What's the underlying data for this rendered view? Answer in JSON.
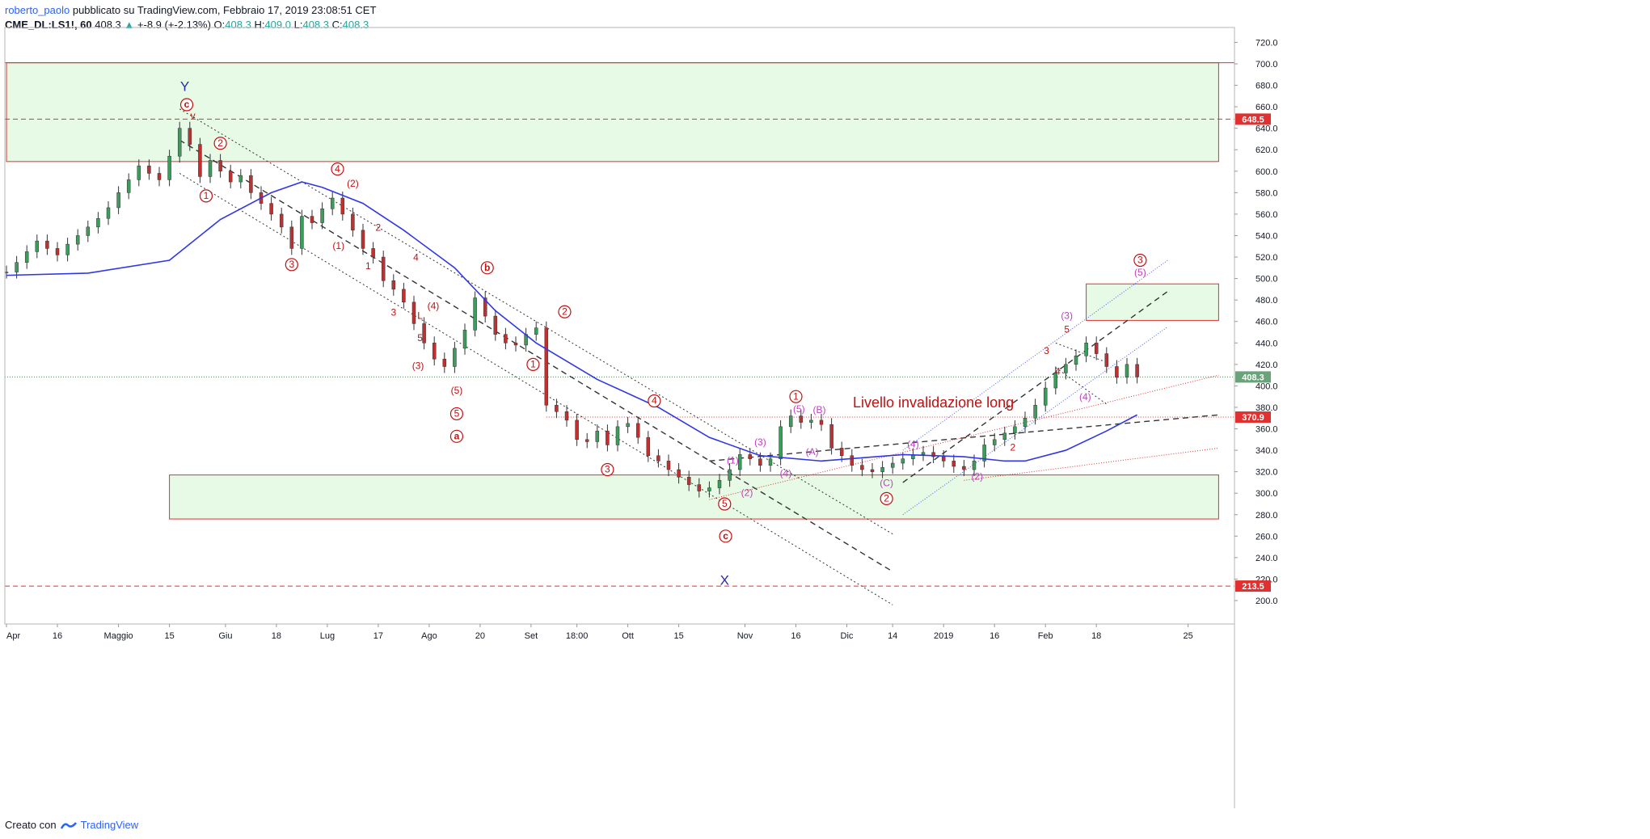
{
  "header": {
    "user": "roberto_paolo",
    "published": " pubblicato su TradingView.com, Febbraio 17, 2019 23:08:51 CET",
    "symbol": "CME_DL:LS1!, 60",
    "last": " 408.3 ",
    "change_arrow": "▲",
    "change": " +-8.9 (+-2.13%)",
    "o_label": " O:",
    "o_val": "408.3",
    "h_label": " H:",
    "h_val": "409.0",
    "l_label": " L:",
    "l_val": "408.3",
    "c_label": " C:",
    "c_val": "408.3"
  },
  "footer": {
    "created_with": "Creato con",
    "brand": "TradingView"
  },
  "colors": {
    "zone_fill": "#e6fae6",
    "zone_line": "#e03030",
    "ma": "#2f37e6",
    "channel": "#333333",
    "blue_dotted": "#4a5cf0",
    "wave_red": "#c01010",
    "wave_purple": "#c040c0",
    "last_price_bg": "#6aa27a",
    "marker_bg": "#e03030"
  },
  "chart_data": {
    "type": "line",
    "instrument": "CME_DL:LS1!",
    "timeframe": "60",
    "ylim": [
      192,
      728
    ],
    "y_ticks": [
      200,
      220,
      240,
      260,
      280,
      300,
      320,
      340,
      360,
      380,
      400,
      420,
      440,
      460,
      480,
      500,
      520,
      540,
      560,
      580,
      600,
      620,
      640,
      660,
      680,
      700,
      720
    ],
    "x_ticks": [
      {
        "i": 0,
        "label": "Apr"
      },
      {
        "i": 5,
        "label": "16"
      },
      {
        "i": 11,
        "label": "Maggio"
      },
      {
        "i": 16,
        "label": "15"
      },
      {
        "i": 21.5,
        "label": "Giu"
      },
      {
        "i": 26.5,
        "label": "18"
      },
      {
        "i": 31.5,
        "label": "Lug"
      },
      {
        "i": 36.5,
        "label": "17"
      },
      {
        "i": 41.5,
        "label": "Ago"
      },
      {
        "i": 46.5,
        "label": "20"
      },
      {
        "i": 51.5,
        "label": "Set"
      },
      {
        "i": 56,
        "label": "18:00"
      },
      {
        "i": 61,
        "label": "Ott"
      },
      {
        "i": 66,
        "label": "15"
      },
      {
        "i": 72.5,
        "label": "Nov"
      },
      {
        "i": 77.5,
        "label": "16"
      },
      {
        "i": 82.5,
        "label": "Dic"
      },
      {
        "i": 87,
        "label": "14"
      },
      {
        "i": 92,
        "label": "2019"
      },
      {
        "i": 97,
        "label": "16"
      },
      {
        "i": 102,
        "label": "Feb"
      },
      {
        "i": 107,
        "label": "18"
      },
      {
        "i": 116,
        "label": "25"
      }
    ],
    "price_markers": [
      {
        "value": 648.5,
        "label": "648.5"
      },
      {
        "value": 408.3,
        "label": "408.3",
        "last": true
      },
      {
        "value": 370.9,
        "label": "370.9"
      },
      {
        "value": 213.5,
        "label": "213.5"
      }
    ],
    "closes": [
      506,
      515,
      525,
      535,
      528,
      522,
      532,
      540,
      548,
      556,
      566,
      580,
      592,
      605,
      598,
      592,
      614,
      640,
      625,
      595,
      610,
      600,
      590,
      596,
      580,
      570,
      560,
      548,
      528,
      558,
      552,
      565,
      575,
      560,
      545,
      528,
      520,
      498,
      490,
      478,
      458,
      440,
      425,
      418,
      435,
      452,
      482,
      465,
      448,
      440,
      438,
      448,
      454,
      382,
      376,
      368,
      350,
      348,
      358,
      345,
      362,
      365,
      352,
      335,
      330,
      322,
      315,
      308,
      302,
      305,
      312,
      322,
      336,
      332,
      326,
      332,
      362,
      372,
      366,
      368,
      364,
      342,
      335,
      326,
      322,
      320,
      324,
      328,
      332,
      336,
      338,
      334,
      330,
      325,
      322,
      330,
      345,
      350,
      356,
      362,
      370,
      382,
      398,
      412,
      420,
      428,
      440,
      430,
      418,
      408,
      420,
      408.3
    ],
    "ma": [
      [
        0,
        503
      ],
      [
        8,
        505
      ],
      [
        16,
        517
      ],
      [
        21,
        555
      ],
      [
        26,
        580
      ],
      [
        29,
        590
      ],
      [
        31,
        585
      ],
      [
        35,
        570
      ],
      [
        39,
        545
      ],
      [
        44,
        510
      ],
      [
        48,
        470
      ],
      [
        52,
        440
      ],
      [
        58,
        406
      ],
      [
        64,
        380
      ],
      [
        69,
        352
      ],
      [
        74,
        335
      ],
      [
        80,
        330
      ],
      [
        88,
        336
      ],
      [
        94,
        334
      ],
      [
        98,
        330
      ],
      [
        100,
        330
      ],
      [
        104,
        340
      ],
      [
        108,
        358
      ],
      [
        111,
        373
      ]
    ],
    "zones": [
      {
        "x": [
          0,
          119
        ],
        "y": [
          609,
          701
        ]
      },
      {
        "x": [
          16,
          119
        ],
        "y": [
          276,
          317
        ]
      },
      {
        "x": [
          106,
          119
        ],
        "y": [
          461,
          495
        ]
      }
    ],
    "levels": [
      {
        "y": 701,
        "style": "solid"
      },
      {
        "y": 648.5,
        "style": "dashed"
      },
      {
        "y": 370.9,
        "style": "dotted",
        "x_from": 53
      },
      {
        "y": 213.5,
        "style": "dashed"
      },
      {
        "y": 408.3,
        "style": "dotted-green"
      }
    ],
    "lines": [
      {
        "from": [
          17,
          658
        ],
        "to": [
          87,
          262
        ],
        "style": "dotted"
      },
      {
        "from": [
          17,
          629
        ],
        "to": [
          87,
          227
        ],
        "style": "dashed"
      },
      {
        "from": [
          17,
          598
        ],
        "to": [
          87,
          196
        ],
        "style": "dotted"
      },
      {
        "from": [
          69,
          294
        ],
        "to": [
          119,
          410
        ],
        "style": "dotted-red"
      },
      {
        "from": [
          69,
          330
        ],
        "to": [
          119,
          373
        ],
        "style": "dashed"
      },
      {
        "from": [
          88,
          310
        ],
        "to": [
          114,
          488
        ],
        "style": "dashed"
      },
      {
        "from": [
          88,
          280
        ],
        "to": [
          114,
          455
        ],
        "style": "dotted-blue"
      },
      {
        "from": [
          88,
          340
        ],
        "to": [
          114,
          517
        ],
        "style": "dotted-blue"
      },
      {
        "from": [
          94,
          312
        ],
        "to": [
          119,
          342
        ],
        "style": "dotted-red"
      },
      {
        "from": [
          103,
          440
        ],
        "to": [
          108,
          422
        ],
        "style": "dotted"
      },
      {
        "from": [
          103,
          417
        ],
        "to": [
          108,
          383
        ],
        "style": "dotted"
      }
    ],
    "labels": [
      {
        "t": "Y",
        "i": 17.5,
        "y": 678,
        "c": "letter-blue"
      },
      {
        "t": "X",
        "i": 70.5,
        "y": 218,
        "c": "letter-blue"
      },
      {
        "t": "c",
        "i": 17.7,
        "y": 662,
        "c": "red-circle-bold"
      },
      {
        "t": "v",
        "i": 18.3,
        "y": 651,
        "c": "red"
      },
      {
        "t": "2",
        "i": 21,
        "y": 626,
        "c": "red-circle"
      },
      {
        "t": "1",
        "i": 19.6,
        "y": 577,
        "c": "red-circle"
      },
      {
        "t": "3",
        "i": 28,
        "y": 513,
        "c": "red-circle"
      },
      {
        "t": "4",
        "i": 32.5,
        "y": 602,
        "c": "red-circle"
      },
      {
        "t": "(2)",
        "i": 34,
        "y": 588,
        "c": "red"
      },
      {
        "t": "(1)",
        "i": 32.6,
        "y": 530,
        "c": "red"
      },
      {
        "t": "2",
        "i": 36.5,
        "y": 547,
        "c": "red"
      },
      {
        "t": "1",
        "i": 35.5,
        "y": 511,
        "c": "red"
      },
      {
        "t": "4",
        "i": 40.2,
        "y": 519,
        "c": "red"
      },
      {
        "t": "3",
        "i": 38,
        "y": 468,
        "c": "red"
      },
      {
        "t": "(4)",
        "i": 41.9,
        "y": 474,
        "c": "red"
      },
      {
        "t": "L",
        "i": 40.6,
        "y": 465,
        "c": "red"
      },
      {
        "t": "5",
        "i": 40.6,
        "y": 444,
        "c": "red"
      },
      {
        "t": "(3)",
        "i": 40.4,
        "y": 418,
        "c": "red"
      },
      {
        "t": "(5)",
        "i": 44.2,
        "y": 395,
        "c": "red"
      },
      {
        "t": "5",
        "i": 44.2,
        "y": 374,
        "c": "red-circle"
      },
      {
        "t": "a",
        "i": 44.2,
        "y": 353,
        "c": "red-circle-bold"
      },
      {
        "t": "b",
        "i": 47.2,
        "y": 510,
        "c": "red-circle-bold"
      },
      {
        "t": "2",
        "i": 54.8,
        "y": 469,
        "c": "red-circle"
      },
      {
        "t": "1",
        "i": 51.7,
        "y": 420,
        "c": "red-circle"
      },
      {
        "t": "4",
        "i": 63.6,
        "y": 386,
        "c": "red-circle"
      },
      {
        "t": "3",
        "i": 59,
        "y": 322,
        "c": "red-circle"
      },
      {
        "t": "(1)",
        "i": 71.3,
        "y": 330,
        "c": "purple"
      },
      {
        "t": "(2)",
        "i": 72.7,
        "y": 300,
        "c": "purple"
      },
      {
        "t": "(3)",
        "i": 74,
        "y": 347,
        "c": "purple"
      },
      {
        "t": "(4)",
        "i": 76.5,
        "y": 318,
        "c": "purple"
      },
      {
        "t": "5",
        "i": 70.5,
        "y": 290,
        "c": "red-circle"
      },
      {
        "t": "c",
        "i": 70.6,
        "y": 260,
        "c": "red-circle-bold"
      },
      {
        "t": "1",
        "i": 77.5,
        "y": 390,
        "c": "red-circle"
      },
      {
        "t": "(5)",
        "i": 77.8,
        "y": 378,
        "c": "purple"
      },
      {
        "t": "(B)",
        "i": 79.8,
        "y": 377,
        "c": "purple"
      },
      {
        "t": "(A)",
        "i": 79.1,
        "y": 338,
        "c": "purple"
      },
      {
        "t": "(4)",
        "i": 89,
        "y": 345,
        "c": "purple"
      },
      {
        "t": "(C)",
        "i": 86.4,
        "y": 309,
        "c": "purple"
      },
      {
        "t": "2",
        "i": 86.4,
        "y": 295,
        "c": "red-circle"
      },
      {
        "t": "(2)",
        "i": 95.3,
        "y": 315,
        "c": "purple"
      },
      {
        "t": "2",
        "i": 98.8,
        "y": 342,
        "c": "red"
      },
      {
        "t": "3",
        "i": 102.1,
        "y": 432,
        "c": "red"
      },
      {
        "t": "5",
        "i": 104.1,
        "y": 452,
        "c": "red"
      },
      {
        "t": "(3)",
        "i": 104.1,
        "y": 465,
        "c": "purple"
      },
      {
        "t": "4",
        "i": 103.2,
        "y": 413,
        "c": "red"
      },
      {
        "t": "(4)",
        "i": 105.9,
        "y": 389,
        "c": "purple"
      },
      {
        "t": "3",
        "i": 111.3,
        "y": 517,
        "c": "red-circle"
      },
      {
        "t": "(5)",
        "i": 111.3,
        "y": 505,
        "c": "purple"
      }
    ],
    "annotation": {
      "text": "Livello invalidazione long",
      "i": 91,
      "y": 380
    }
  }
}
